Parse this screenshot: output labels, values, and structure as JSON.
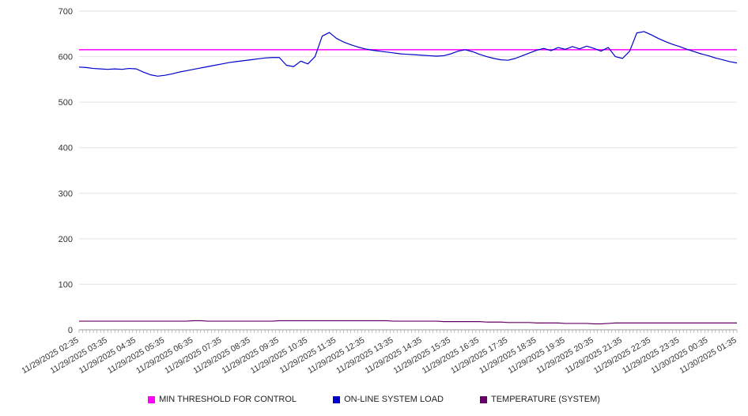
{
  "chart_data": {
    "type": "line",
    "title": "",
    "xlabel": "",
    "ylabel": "",
    "ylim": [
      0,
      700
    ],
    "y_ticks": [
      0,
      100,
      200,
      300,
      400,
      500,
      600,
      700
    ],
    "grid": true,
    "legend_position": "bottom",
    "points_per_label": 4,
    "x_labels": [
      "11/29/2025 02:35",
      "11/29/2025 03:35",
      "11/29/2025 04:35",
      "11/29/2025 05:35",
      "11/29/2025 06:35",
      "11/29/2025 07:35",
      "11/29/2025 08:35",
      "11/29/2025 09:35",
      "11/29/2025 10:35",
      "11/29/2025 11:35",
      "11/29/2025 12:35",
      "11/29/2025 13:35",
      "11/29/2025 14:35",
      "11/29/2025 15:35",
      "11/29/2025 16:35",
      "11/29/2025 17:35",
      "11/29/2025 18:35",
      "11/29/2025 19:35",
      "11/29/2025 20:35",
      "11/29/2025 21:35",
      "11/29/2025 22:35",
      "11/29/2025 23:35",
      "11/30/2025 00:35",
      "11/30/2025 01:35"
    ],
    "series": [
      {
        "name": "MIN THRESHOLD FOR CONTROL",
        "color": "#ff00ff",
        "constant": 615
      },
      {
        "name": "ON-LINE SYSTEM LOAD",
        "color": "#0000cc",
        "values": [
          577,
          576,
          574,
          573,
          572,
          573,
          572,
          574,
          573,
          566,
          560,
          557,
          559,
          562,
          566,
          569,
          572,
          575,
          578,
          581,
          584,
          587,
          589,
          591,
          593,
          595,
          597,
          598,
          598,
          581,
          578,
          590,
          584,
          600,
          645,
          653,
          640,
          632,
          626,
          621,
          617,
          614,
          612,
          610,
          608,
          606,
          605,
          604,
          603,
          602,
          601,
          602,
          606,
          612,
          615,
          611,
          605,
          600,
          596,
          593,
          592,
          596,
          602,
          608,
          614,
          618,
          613,
          620,
          616,
          622,
          617,
          623,
          618,
          612,
          620,
          600,
          596,
          612,
          652,
          655,
          648,
          640,
          633,
          627,
          622,
          616,
          611,
          606,
          602,
          597,
          593,
          589,
          586
        ]
      },
      {
        "name": "TEMPERATURE (SYSTEM)",
        "color": "#660066",
        "values": [
          19,
          19,
          19,
          19,
          19,
          19,
          19,
          19,
          19,
          19,
          19,
          19,
          19,
          19,
          19,
          19,
          20,
          20,
          19,
          19,
          19,
          19,
          19,
          19,
          19,
          19,
          19,
          19,
          20,
          20,
          20,
          20,
          20,
          20,
          20,
          20,
          20,
          20,
          20,
          20,
          20,
          20,
          20,
          20,
          19,
          19,
          19,
          19,
          19,
          19,
          19,
          18,
          18,
          18,
          18,
          18,
          18,
          17,
          17,
          17,
          16,
          16,
          16,
          16,
          15,
          15,
          15,
          15,
          14,
          14,
          14,
          14,
          13,
          13,
          14,
          15,
          15,
          15,
          15,
          15,
          15,
          15,
          15,
          15,
          15,
          15,
          15,
          15,
          15,
          15,
          15,
          15,
          15
        ]
      }
    ]
  }
}
